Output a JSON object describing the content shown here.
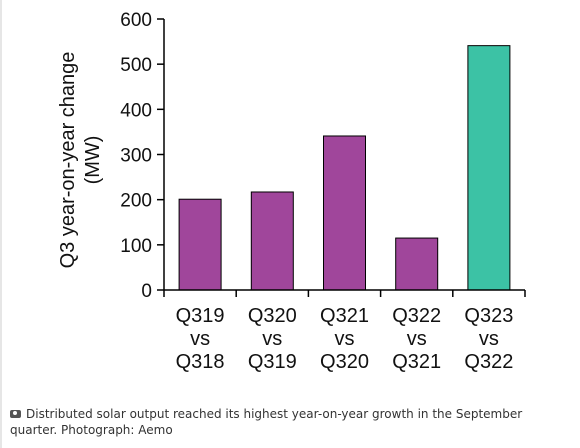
{
  "chart_data": {
    "type": "bar",
    "categories": [
      [
        "Q319",
        "vs",
        "Q318"
      ],
      [
        "Q320",
        "vs",
        "Q319"
      ],
      [
        "Q321",
        "vs",
        "Q320"
      ],
      [
        "Q322",
        "vs",
        "Q321"
      ],
      [
        "Q323",
        "vs",
        "Q322"
      ]
    ],
    "values": [
      201,
      217,
      341,
      115,
      541
    ],
    "colors": [
      "#a0469b",
      "#a0469b",
      "#a0469b",
      "#a0469b",
      "#3cc2a5"
    ],
    "ylabel_line1": "Q3 year-on-year change",
    "ylabel_line2": "(MW)",
    "ylim": [
      0,
      600
    ],
    "yticks": [
      0,
      100,
      200,
      300,
      400,
      500,
      600
    ],
    "grid": false
  },
  "caption": {
    "icon": "camera-icon",
    "text": "Distributed solar output reached its highest year-on-year growth in the September quarter. Photograph: Aemo"
  }
}
